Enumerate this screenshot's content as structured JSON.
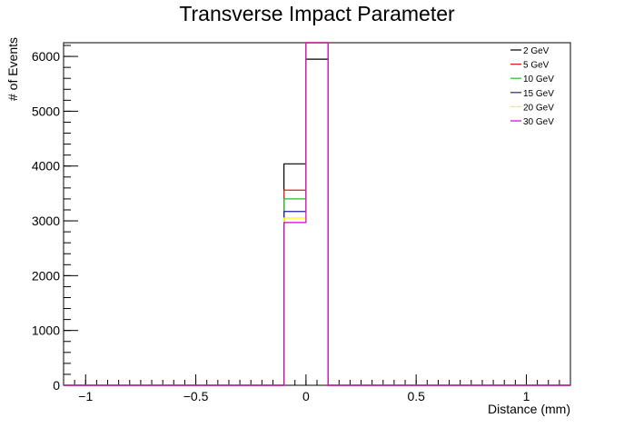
{
  "chart_data": {
    "type": "step-histogram",
    "title": "Transverse Impact Parameter",
    "xlabel": "Distance (mm)",
    "ylabel": "# of Events",
    "xlim": [
      -1.1,
      1.2
    ],
    "ylim": [
      0,
      6250
    ],
    "bins": [
      -1.1,
      -0.1,
      0.0,
      0.1,
      1.2
    ],
    "x_ticks": [
      {
        "value": -1,
        "label": "−1"
      },
      {
        "value": -0.5,
        "label": "−0.5"
      },
      {
        "value": 0,
        "label": "0"
      },
      {
        "value": 0.5,
        "label": "0.5"
      },
      {
        "value": 1,
        "label": "1"
      }
    ],
    "y_ticks": [
      {
        "value": 0,
        "label": "0"
      },
      {
        "value": 1000,
        "label": "1000"
      },
      {
        "value": 2000,
        "label": "2000"
      },
      {
        "value": 3000,
        "label": "3000"
      },
      {
        "value": 4000,
        "label": "4000"
      },
      {
        "value": 5000,
        "label": "5000"
      },
      {
        "value": 6000,
        "label": "6000"
      }
    ],
    "legend_position": "top-right",
    "series": [
      {
        "name": "2 GeV",
        "color": "#000000",
        "values": [
          0,
          4040,
          5950,
          0
        ]
      },
      {
        "name": "5 GeV",
        "color": "#d62020",
        "values": [
          0,
          3560,
          6250,
          0
        ]
      },
      {
        "name": "10 GeV",
        "color": "#20c020",
        "values": [
          0,
          3400,
          6250,
          0
        ]
      },
      {
        "name": "15 GeV",
        "color": "#2020a0",
        "values": [
          0,
          3170,
          6250,
          0
        ]
      },
      {
        "name": "20 GeV",
        "color": "#ffff00",
        "values": [
          0,
          3050,
          6250,
          0
        ]
      },
      {
        "name": "30 GeV",
        "color": "#cc00cc",
        "values": [
          0,
          2970,
          6250,
          0
        ]
      }
    ]
  }
}
